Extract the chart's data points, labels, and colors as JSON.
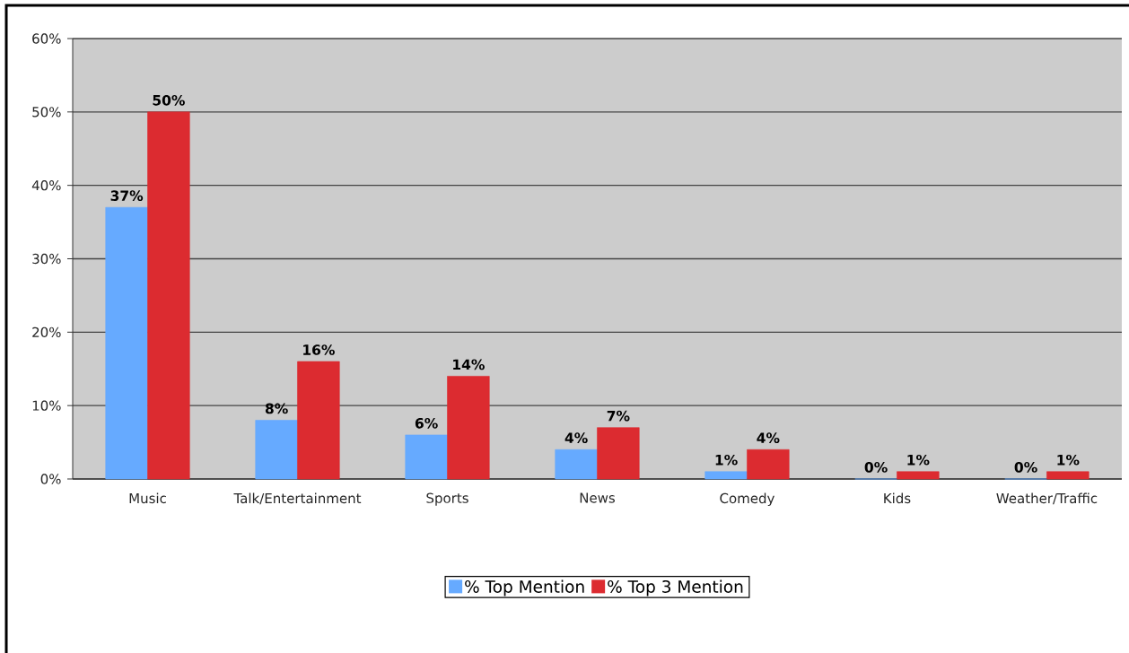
{
  "chart_data": {
    "type": "bar",
    "categories": [
      "Music",
      "Talk/Entertainment",
      "Sports",
      "News",
      "Comedy",
      "Kids",
      "Weather/Traffic"
    ],
    "series": [
      {
        "name": "% Top Mention",
        "color": "#66aaff",
        "values": [
          37,
          8,
          6,
          4,
          1,
          0,
          0
        ],
        "value_labels": [
          "37%",
          "8%",
          "6%",
          "4%",
          "1%",
          "0%",
          "0%"
        ]
      },
      {
        "name": "% Top 3 Mention",
        "color": "#dc2b30",
        "values": [
          50,
          16,
          14,
          7,
          4,
          1,
          1
        ],
        "value_labels": [
          "50%",
          "16%",
          "14%",
          "7%",
          "4%",
          "1%",
          "1%"
        ]
      }
    ],
    "ylim": [
      0,
      60
    ],
    "yticks": [
      {
        "value": 0,
        "label": "0%"
      },
      {
        "value": 10,
        "label": "10%"
      },
      {
        "value": 20,
        "label": "20%"
      },
      {
        "value": 30,
        "label": "30%"
      },
      {
        "value": 40,
        "label": "40%"
      },
      {
        "value": 50,
        "label": "50%"
      },
      {
        "value": 60,
        "label": "60%"
      }
    ],
    "grid": "y",
    "legend": "bottom"
  }
}
